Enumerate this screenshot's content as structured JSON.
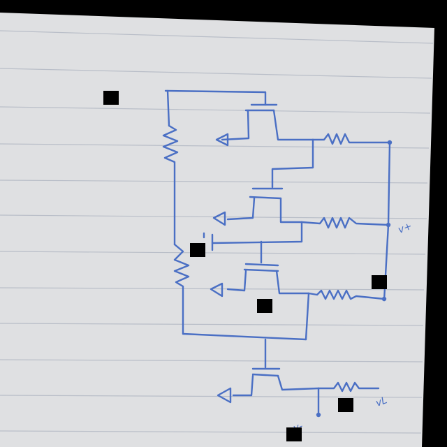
{
  "image": {
    "paper_color": "#dfe0e2",
    "ink_color": "#4a6fc4",
    "rule_color": "#b9bec8",
    "mask_color": "#000000"
  },
  "labels": {
    "output_plus": "v+",
    "output_minus": "vL",
    "bottom_left": "v-"
  }
}
